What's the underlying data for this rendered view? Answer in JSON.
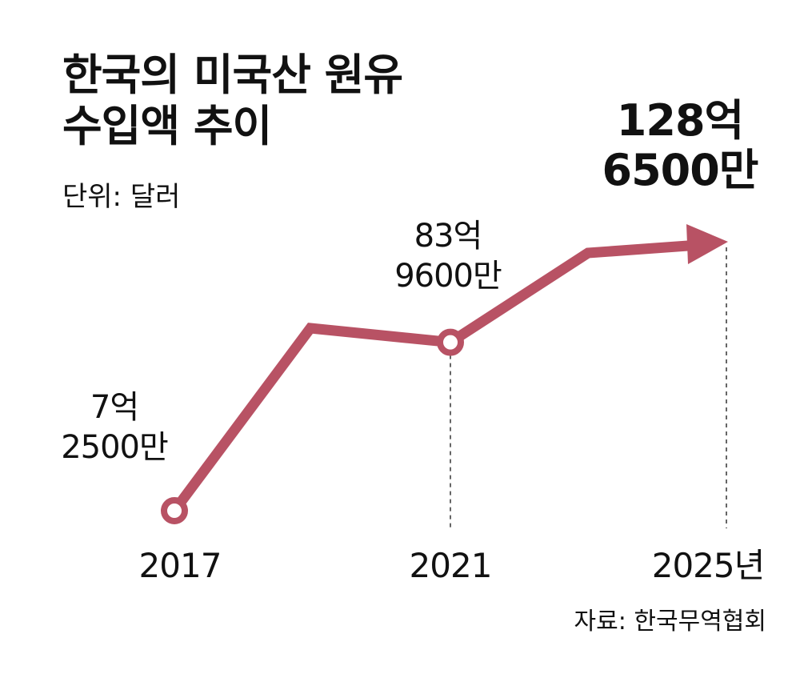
{
  "title_line1": "한국의 미국산 원유",
  "title_line2": "수입액 추이",
  "unit": "단위: 달러",
  "source": "자료: 한국무역협회",
  "colors": {
    "line": "#b85264",
    "text": "#111111",
    "guide": "#333333"
  },
  "chart_data": {
    "type": "line",
    "title": "한국의 미국산 원유 수입액 추이",
    "unit": "단위: 달러",
    "x": [
      "2017",
      "2021",
      "2025년"
    ],
    "values": [
      725000000,
      8396000000,
      12865000000
    ],
    "data_labels": [
      {
        "line1": "7억",
        "line2": "2500만"
      },
      {
        "line1": "83억",
        "line2": "9600만"
      },
      {
        "line1": "128억",
        "line2": "6500만"
      }
    ],
    "series": [
      {
        "values": [
          725000000,
          8396000000,
          12865000000
        ]
      }
    ],
    "xlabel": "",
    "ylabel": "",
    "grid": false,
    "legend": "none"
  }
}
